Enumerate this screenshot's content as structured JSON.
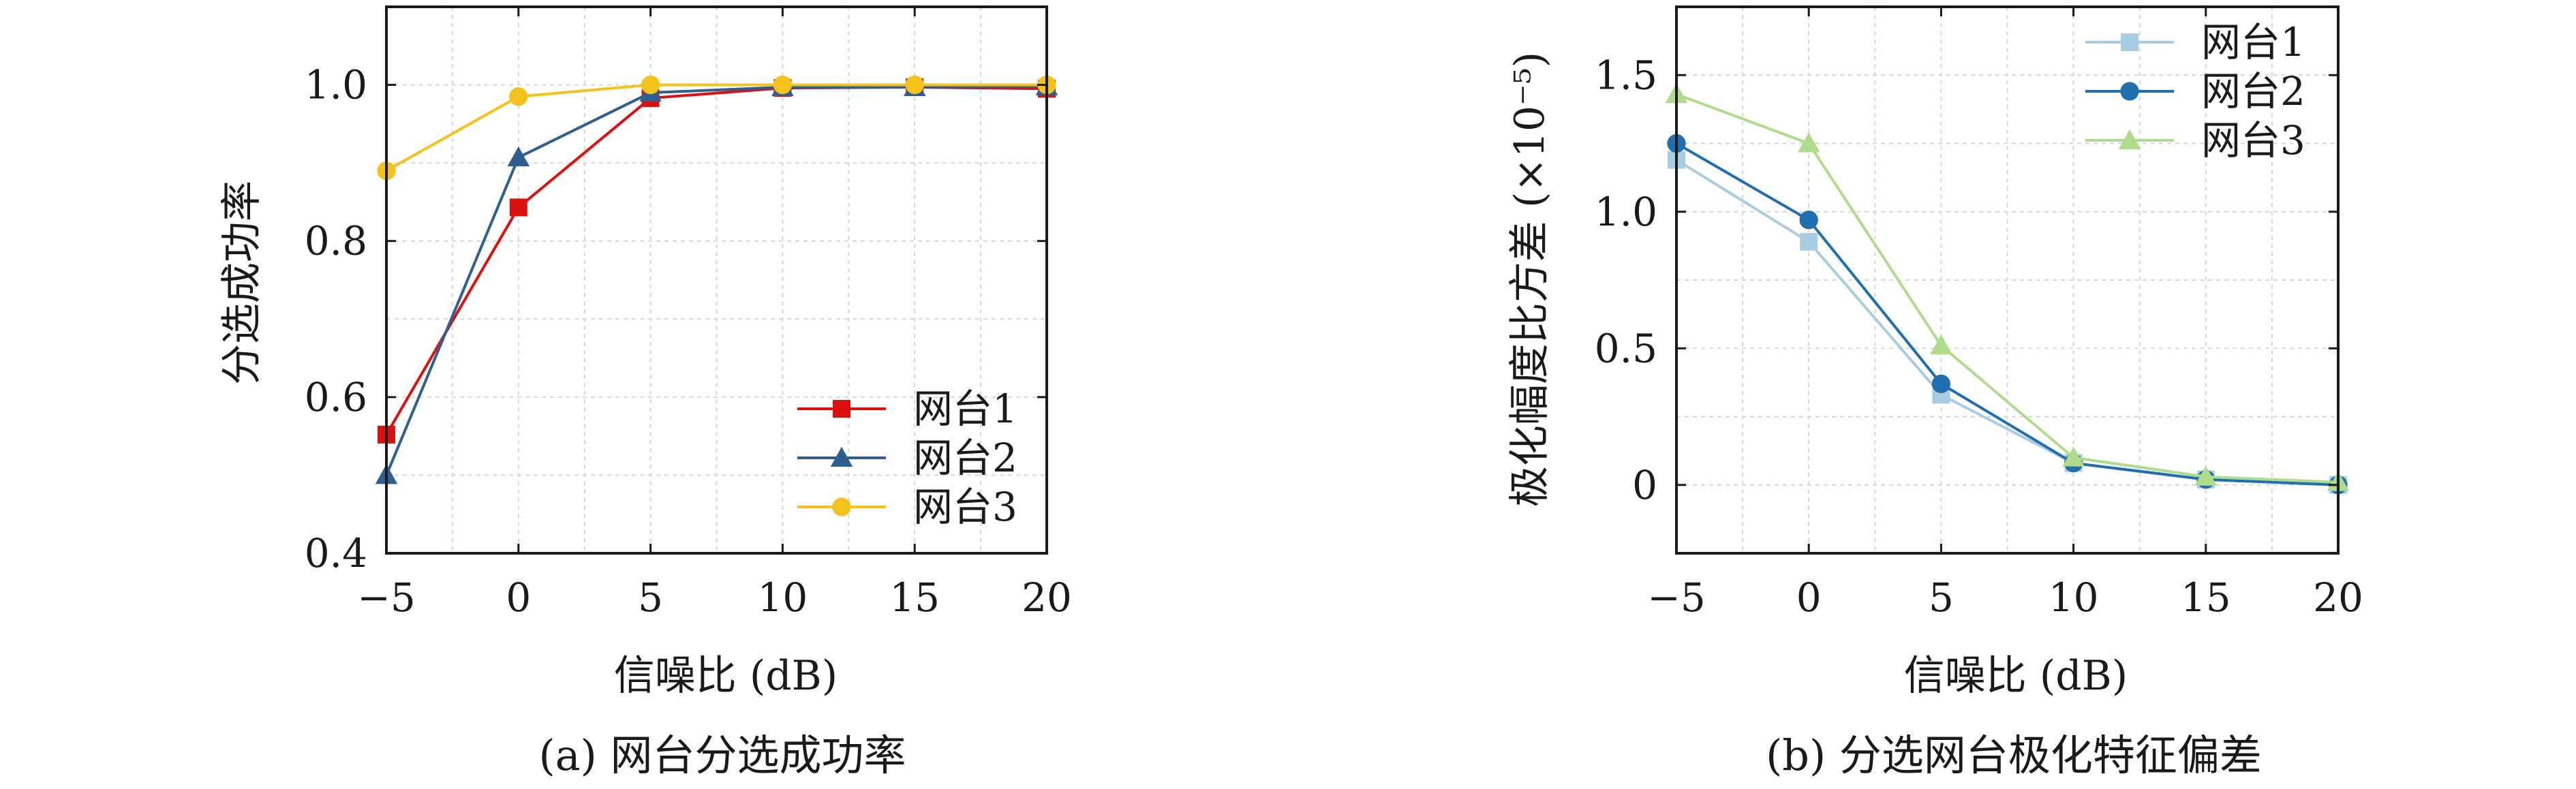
{
  "colors": {
    "red": "#dd1010",
    "darkblue": "#2f5f8f",
    "gold": "#f5c21b",
    "lightblue": "#a7cde3",
    "mediumblue": "#1f6fb0",
    "lightgreen": "#aedc8a",
    "grid": "#d7d7d7",
    "axis": "#1a1a1a"
  },
  "chart_data": [
    {
      "type": "line",
      "caption": "(a) 网台分选成功率",
      "xlabel": "信噪比 (dB)",
      "ylabel": "分选成功率",
      "x": [
        -5,
        0,
        5,
        10,
        15,
        20
      ],
      "xticks": [
        "−5",
        "0",
        "5",
        "10",
        "15",
        "20"
      ],
      "xlim": [
        -5,
        20
      ],
      "yticks": [
        "0.4",
        "0.6",
        "0.8",
        "1.0"
      ],
      "ylim": [
        0.4,
        1.1
      ],
      "grid": true,
      "legend_position": "lower-right",
      "series": [
        {
          "name": "网台1",
          "marker": "square",
          "color": "#dd1010",
          "values": [
            0.552,
            0.843,
            0.983,
            0.996,
            0.997,
            0.995
          ]
        },
        {
          "name": "网台2",
          "marker": "triangle",
          "color": "#2f5f8f",
          "values": [
            0.5,
            0.907,
            0.99,
            0.997,
            0.997,
            0.998
          ]
        },
        {
          "name": "网台3",
          "marker": "circle",
          "color": "#f5c21b",
          "values": [
            0.89,
            0.985,
            1.0,
            1.0,
            1.0,
            1.0
          ]
        }
      ]
    },
    {
      "type": "line",
      "caption": "(b) 分选网台极化特征偏差",
      "xlabel": "信噪比 (dB)",
      "ylabel": "极化幅度比方差 (×10⁻⁵)",
      "x": [
        -5,
        0,
        5,
        10,
        15,
        20
      ],
      "xticks": [
        "−5",
        "0",
        "5",
        "10",
        "15",
        "20"
      ],
      "xlim": [
        -5,
        20
      ],
      "yticks": [
        "0",
        "0.5",
        "1.0",
        "1.5"
      ],
      "ylim": [
        -0.25,
        1.75
      ],
      "grid": true,
      "legend_position": "top-right",
      "series": [
        {
          "name": "网台1",
          "marker": "square",
          "color": "#a7cde3",
          "values": [
            1.19,
            0.89,
            0.33,
            0.08,
            0.02,
            0.0
          ]
        },
        {
          "name": "网台2",
          "marker": "circle",
          "color": "#1f6fb0",
          "values": [
            1.25,
            0.97,
            0.37,
            0.08,
            0.02,
            0.0
          ]
        },
        {
          "name": "网台3",
          "marker": "triangle",
          "color": "#aedc8a",
          "values": [
            1.43,
            1.25,
            0.51,
            0.1,
            0.03,
            0.01
          ]
        }
      ]
    }
  ]
}
